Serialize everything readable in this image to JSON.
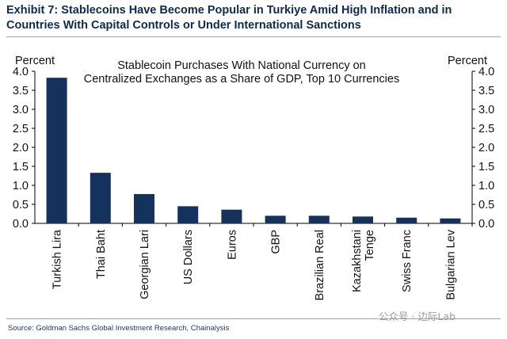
{
  "exhibit_title": "Exhibit 7: Stablecoins Have Become Popular in Turkiye Amid High Inflation and in Countries With Capital Controls or Under International Sanctions",
  "source": "Source: Goldman Sachs Global Investment Research, Chainalysis",
  "watermark": "公众号 · 边际Lab",
  "colors": {
    "bar": "#14325c",
    "title": "#0d2a4f",
    "axis": "#000000"
  },
  "chart_data": {
    "type": "bar",
    "title_lines": [
      "Stablecoin Purchases With National Currency on",
      "Centralized Exchanges as a Share of GDP, Top 10 Currencies"
    ],
    "ylabel_left": "Percent",
    "ylabel_right": "Percent",
    "ylim": [
      0,
      4.0
    ],
    "yticks": [
      "0.0",
      "0.5",
      "1.0",
      "1.5",
      "2.0",
      "2.5",
      "3.0",
      "3.5",
      "4.0"
    ],
    "categories": [
      "Turkish Lira",
      "Thai Baht",
      "Georgian Lari",
      "US Dollars",
      "Euros",
      "GBP",
      "Brazilian Real",
      "Kazakhstani Tenge",
      "Swiss Franc",
      "Bulgarian Lev"
    ],
    "category_lines": [
      [
        "Turkish Lira"
      ],
      [
        "Thai Baht"
      ],
      [
        "Georgian Lari"
      ],
      [
        "US Dollars"
      ],
      [
        "Euros"
      ],
      [
        "GBP"
      ],
      [
        "Brazilian Real"
      ],
      [
        "Kazakhstani",
        "Tenge"
      ],
      [
        "Swiss Franc"
      ],
      [
        "Bulgarian Lev"
      ]
    ],
    "values": [
      3.83,
      1.33,
      0.77,
      0.45,
      0.36,
      0.2,
      0.2,
      0.18,
      0.15,
      0.13
    ],
    "grid": false
  }
}
